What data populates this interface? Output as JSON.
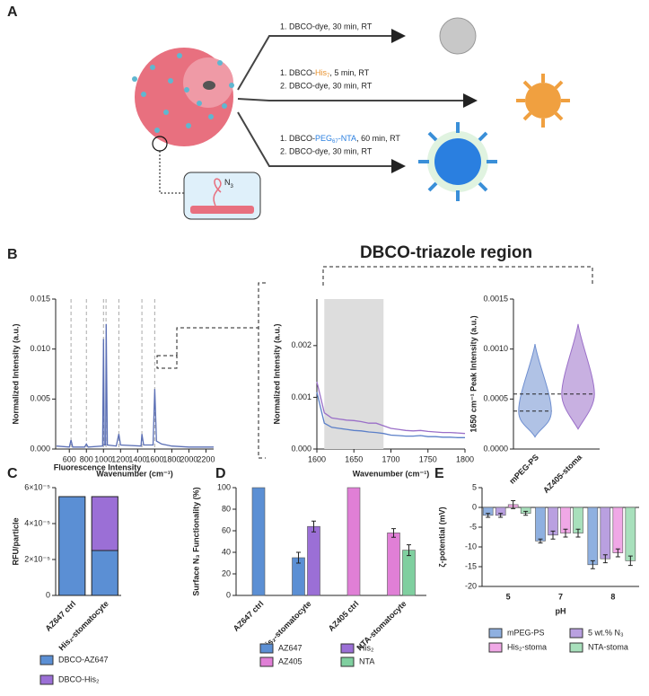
{
  "panels": [
    "A",
    "B",
    "C",
    "D",
    "E"
  ],
  "panel_a": {
    "inset": {
      "label": "N",
      "sub": "3"
    },
    "routes": [
      {
        "steps": [
          {
            "prefix": "1.  DBCO-dye, 30 min, RT"
          }
        ]
      },
      {
        "steps": [
          {
            "prefix": "1.  DBCO-",
            "highlight": "His",
            "sub": "7",
            "suffix": ", 5 min, RT"
          },
          {
            "prefix": "2.  DBCO-dye, 30 min, RT"
          }
        ]
      },
      {
        "steps": [
          {
            "prefix": "1.  DBCO-",
            "highlight": "PEG",
            "sub": "67",
            "highlight2": "-NTA",
            "suffix": ", 60 min, RT"
          },
          {
            "prefix": "2.  DBCO-dye, 30 min, RT"
          }
        ]
      }
    ]
  },
  "panel_b": {
    "title": "DBCO-triazole region"
  },
  "chart_data": [
    {
      "type": "line",
      "xlabel": "Wavenumber (cm⁻¹)",
      "ylabel": "Normalized Intensity (a.u.)",
      "x": [
        450,
        600,
        620,
        640,
        780,
        800,
        820,
        990,
        1000,
        1010,
        1025,
        1032,
        1045,
        1150,
        1180,
        1200,
        1440,
        1450,
        1470,
        1580,
        1600,
        1620,
        1680,
        1800,
        2000,
        2290
      ],
      "series": [
        {
          "color": "#5b6fb5",
          "values": [
            0.0003,
            0.0002,
            0.0009,
            0.0002,
            0.0002,
            0.0005,
            0.0002,
            0.0003,
            0.011,
            0.0004,
            0.0004,
            0.0125,
            0.0004,
            0.0003,
            0.0015,
            0.0004,
            0.0003,
            0.0015,
            0.0004,
            0.0004,
            0.006,
            0.0008,
            0.0005,
            0.0003,
            0.0002,
            0.0002
          ]
        }
      ],
      "reference_x": [
        620,
        800,
        1000,
        1030,
        1180,
        1450,
        1600
      ],
      "xlim": [
        440,
        2290
      ],
      "xticks": [
        600,
        800,
        1000,
        1200,
        1400,
        1600,
        1800,
        2000,
        2200
      ],
      "ylim": [
        0,
        0.015
      ],
      "yticks": [
        {
          "value": 0,
          "label": "0.000"
        },
        {
          "value": 0.005,
          "label": "0.005"
        },
        {
          "value": 0.01,
          "label": "0.010"
        },
        {
          "value": 0.015,
          "label": "0.015"
        }
      ]
    },
    {
      "type": "line",
      "xlabel": "Wavenumber (cm⁻¹)",
      "ylabel": "Normalized Intensity (a.u.)",
      "x": [
        1600,
        1610,
        1620,
        1630,
        1640,
        1650,
        1660,
        1670,
        1680,
        1690,
        1700,
        1710,
        1720,
        1730,
        1740,
        1750,
        1760,
        1770,
        1780,
        1790,
        1800
      ],
      "series": [
        {
          "color": "#9a6fc8",
          "values": [
            0.0013,
            0.0007,
            0.0006,
            0.00058,
            0.00056,
            0.00055,
            0.00053,
            0.0005,
            0.0005,
            0.00045,
            0.0004,
            0.00038,
            0.00036,
            0.00035,
            0.00036,
            0.00034,
            0.00033,
            0.00032,
            0.00032,
            0.00031,
            0.0003
          ]
        },
        {
          "color": "#5b7fc8",
          "values": [
            0.0011,
            0.0005,
            0.00042,
            0.0004,
            0.00038,
            0.00036,
            0.00035,
            0.00033,
            0.00032,
            0.0003,
            0.00027,
            0.00026,
            0.00025,
            0.00025,
            0.00026,
            0.00024,
            0.00024,
            0.00023,
            0.00023,
            0.00022,
            0.00022
          ]
        }
      ],
      "highlight_x": [
        1610,
        1690
      ],
      "xlim": [
        1600,
        1800
      ],
      "xticks": [
        1600,
        1650,
        1700,
        1750,
        1800
      ],
      "ylim": [
        0,
        0.0029
      ],
      "yticks": [
        {
          "value": 0,
          "label": "0.000"
        },
        {
          "value": 0.001,
          "label": "0.001"
        },
        {
          "value": 0.002,
          "label": "0.002"
        }
      ]
    },
    {
      "type": "violin",
      "ylabel": "1650 cm⁻¹ Peak Intensity (a.u.)",
      "categories": [
        "mPEG-PS",
        "AZ405-stoma"
      ],
      "colors": [
        "#6f8fd0",
        "#9a6fc8"
      ],
      "values": [
        0.00038,
        0.00055
      ],
      "min": [
        0.00012,
        0.0002
      ],
      "max": [
        0.00105,
        0.00125
      ],
      "ylim": [
        0,
        0.0015
      ],
      "yticks": [
        {
          "value": 0,
          "label": "0.0000"
        },
        {
          "value": 0.0005,
          "label": "0.0005"
        },
        {
          "value": 0.001,
          "label": "0.0010"
        },
        {
          "value": 0.0015,
          "label": "0.0015"
        }
      ]
    },
    {
      "type": "stacked-bar",
      "title": "Fluorescence Intensity",
      "ylabel": "RFU/particle",
      "categories": [
        "AZ647 ctrl",
        "His₂-stomatocyte"
      ],
      "series": [
        {
          "name": "DBCO-AZ647",
          "color": "#5b8fd4",
          "values": [
            5.5e-05,
            2.5e-05
          ]
        },
        {
          "name": "DBCO-His₂",
          "color": "#9b6fd6",
          "values": [
            null,
            3e-05
          ]
        }
      ],
      "ylim": [
        0,
        6e-05
      ],
      "yticks": [
        0,
        {
          "value": 2e-05,
          "label": "2×10⁻⁵"
        },
        {
          "value": 4e-05,
          "label": "4×10⁻⁵"
        },
        {
          "value": 6e-05,
          "label": "6×10⁻⁵"
        }
      ]
    },
    {
      "type": "bar",
      "ylabel": "Surface N₃ Functionality (%)",
      "categories": [
        "AZ647 ctrl",
        "His₂-stomatocyte",
        "AZ405 ctrl",
        "NTA-stomatocyte"
      ],
      "series": [
        {
          "name": "AZ647",
          "color": "#5b8fd4",
          "values": [
            100,
            35,
            null,
            null
          ],
          "errors": [
            null,
            5,
            null,
            null
          ]
        },
        {
          "name": "His₂",
          "color": "#9b6fd6",
          "values": [
            null,
            64,
            null,
            null
          ],
          "errors": [
            null,
            5,
            null,
            null
          ]
        },
        {
          "name": "AZ405",
          "color": "#e07fd6",
          "values": [
            null,
            null,
            100,
            58
          ],
          "errors": [
            null,
            null,
            null,
            4
          ]
        },
        {
          "name": "NTA",
          "color": "#7fcf9f",
          "values": [
            null,
            null,
            null,
            42
          ],
          "errors": [
            null,
            null,
            null,
            5
          ]
        }
      ],
      "ylim": [
        0,
        100
      ],
      "yticks": [
        0,
        20,
        40,
        60,
        80,
        100
      ]
    },
    {
      "type": "bar",
      "xlabel": "pH",
      "ylabel": "ζ-potential (mV)",
      "categories": [
        "5",
        "7",
        "8"
      ],
      "series": [
        {
          "name": "mPEG-PS",
          "color": "#8fb0e0",
          "values": [
            -2,
            -8.5,
            -14.5
          ],
          "errors": [
            0.5,
            0.5,
            1
          ]
        },
        {
          "name": "5 wt.% N₃",
          "color": "#b9a0e0",
          "values": [
            -2,
            -7,
            -13
          ],
          "errors": [
            0.5,
            1,
            1
          ]
        },
        {
          "name": "His₂-stoma",
          "color": "#f0a8e6",
          "values": [
            0.7,
            -6.5,
            -11.5
          ],
          "errors": [
            1,
            1,
            1
          ]
        },
        {
          "name": "NTA-stoma",
          "color": "#a8e0bc",
          "values": [
            -1.5,
            -6.5,
            -13.5
          ],
          "errors": [
            0.5,
            1,
            1.2
          ]
        }
      ],
      "ylim": [
        -20,
        5
      ],
      "yticks": [
        -20,
        -15,
        -10,
        -5,
        0,
        5
      ]
    }
  ]
}
